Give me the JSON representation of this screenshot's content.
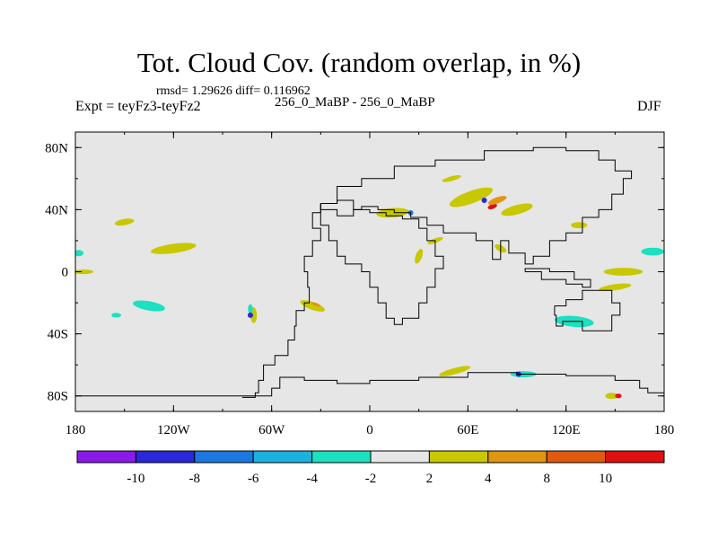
{
  "header": {
    "title": "Tot. Cloud Cov. (random overlap, in %)",
    "stats": "rmsd= 1.29626 diff= 0.116962",
    "left_label": "Expt = teyFz3-teyFz2",
    "center_label": "256_0_MaBP - 256_0_MaBP",
    "season": "DJF"
  },
  "chart_data": {
    "type": "heatmap",
    "title": "Tot. Cloud Cov. (random overlap, in %)",
    "xlabel": "",
    "ylabel": "",
    "xlim": [
      -180,
      180
    ],
    "ylim": [
      -90,
      90
    ],
    "x_ticks": [
      {
        "value": -180,
        "label": "180"
      },
      {
        "value": -120,
        "label": "120W"
      },
      {
        "value": -60,
        "label": "60W"
      },
      {
        "value": 0,
        "label": "0"
      },
      {
        "value": 60,
        "label": "60E"
      },
      {
        "value": 120,
        "label": "120E"
      },
      {
        "value": 180,
        "label": "180"
      }
    ],
    "y_ticks": [
      {
        "value": 80,
        "label": "80N"
      },
      {
        "value": 40,
        "label": "40N"
      },
      {
        "value": 0,
        "label": "0"
      },
      {
        "value": -40,
        "label": "40S"
      },
      {
        "value": -80,
        "label": "80S"
      }
    ],
    "colorbar": {
      "bins": [
        {
          "color": "#8a1be6"
        },
        {
          "color": "#2a28d8"
        },
        {
          "color": "#1c78e0"
        },
        {
          "color": "#1cb2e0"
        },
        {
          "color": "#1ce0c0"
        },
        {
          "color": "#e6e6e6"
        },
        {
          "color": "#c8c800"
        },
        {
          "color": "#e09610"
        },
        {
          "color": "#e05a10"
        },
        {
          "color": "#e01010"
        }
      ],
      "labels": [
        "-10",
        "-8",
        "-6",
        "-4",
        "-2",
        "2",
        "4",
        "8",
        "10"
      ]
    },
    "features": [
      {
        "name": "Central Pacific positive band",
        "lon": -120,
        "lat": 15,
        "rx": 14,
        "ry": 3,
        "rot": -8,
        "color": "#c8c800"
      },
      {
        "name": "North Pacific positive patch",
        "lon": -150,
        "lat": 32,
        "rx": 6,
        "ry": 2,
        "rot": -10,
        "color": "#c8c800"
      },
      {
        "name": "Date-line negative",
        "lon": -178,
        "lat": 12,
        "rx": 3,
        "ry": 2,
        "rot": 0,
        "color": "#1ce0c0"
      },
      {
        "name": "South Pacific negative patch",
        "lon": -135,
        "lat": -22,
        "rx": 10,
        "ry": 3,
        "rot": 10,
        "color": "#1ce0c0"
      },
      {
        "name": "South Pacific negative small",
        "lon": -155,
        "lat": -28,
        "rx": 3,
        "ry": 1.5,
        "rot": 0,
        "color": "#1ce0c0"
      },
      {
        "name": "Equatorial west positive",
        "lon": -175,
        "lat": 0,
        "rx": 6,
        "ry": 1.5,
        "rot": 0,
        "color": "#c8c800"
      },
      {
        "name": "Andes positive",
        "lon": -71,
        "lat": -28,
        "rx": 2,
        "ry": 5,
        "rot": 0,
        "color": "#c8c800"
      },
      {
        "name": "Andes negative",
        "lon": -73,
        "lat": -24,
        "rx": 1.5,
        "ry": 3,
        "rot": 0,
        "color": "#1ce0c0"
      },
      {
        "name": "South Atlantic positive",
        "lon": -35,
        "lat": -22,
        "rx": 8,
        "ry": 2.5,
        "rot": 20,
        "color": "#c8c800"
      },
      {
        "name": "South Atlantic orange",
        "lon": -33,
        "lat": -21,
        "rx": 3,
        "ry": 1,
        "rot": 20,
        "color": "#e09610"
      },
      {
        "name": "Southern Ocean positive",
        "lon": 52,
        "lat": -64,
        "rx": 10,
        "ry": 2,
        "rot": -15,
        "color": "#c8c800"
      },
      {
        "name": "Southern ocean negative",
        "lon": 94,
        "lat": -66,
        "rx": 8,
        "ry": 2,
        "rot": 0,
        "color": "#1ce0c0"
      },
      {
        "name": "Indian Ocean negative",
        "lon": 125,
        "lat": -32,
        "rx": 12,
        "ry": 3.5,
        "rot": 5,
        "color": "#1ce0c0"
      },
      {
        "name": "Indian Ocean positive",
        "lon": 150,
        "lat": -10,
        "rx": 10,
        "ry": 2,
        "rot": -8,
        "color": "#c8c800"
      },
      {
        "name": "Tropical west Pacific positive",
        "lon": 155,
        "lat": 0,
        "rx": 12,
        "ry": 2.5,
        "rot": 0,
        "color": "#c8c800"
      },
      {
        "name": "East Pacific negative",
        "lon": 173,
        "lat": 13,
        "rx": 7,
        "ry": 2.5,
        "rot": 0,
        "color": "#1ce0c0"
      },
      {
        "name": "Mediterranean positive",
        "lon": 14,
        "lat": 38,
        "rx": 10,
        "ry": 3,
        "rot": -5,
        "color": "#c8c800"
      },
      {
        "name": "Asia positive band",
        "lon": 62,
        "lat": 48,
        "rx": 14,
        "ry": 4,
        "rot": -20,
        "color": "#c8c800"
      },
      {
        "name": "Tibet positive",
        "lon": 90,
        "lat": 40,
        "rx": 10,
        "ry": 3,
        "rot": -15,
        "color": "#c8c800"
      },
      {
        "name": "Tibet red",
        "lon": 75,
        "lat": 42,
        "rx": 3,
        "ry": 1.5,
        "rot": -20,
        "color": "#e01010"
      },
      {
        "name": "Tibet orange",
        "lon": 78,
        "lat": 46,
        "rx": 6,
        "ry": 2,
        "rot": -20,
        "color": "#e09610"
      },
      {
        "name": "East Asia positive",
        "lon": 128,
        "lat": 30,
        "rx": 5,
        "ry": 2,
        "rot": 0,
        "color": "#c8c800"
      },
      {
        "name": "Arctic positive",
        "lon": 50,
        "lat": 60,
        "rx": 6,
        "ry": 1.5,
        "rot": -15,
        "color": "#c8c800"
      },
      {
        "name": "Africa positive",
        "lon": 30,
        "lat": 10,
        "rx": 2,
        "ry": 5,
        "rot": 20,
        "color": "#c8c800"
      },
      {
        "name": "Arabian positive",
        "lon": 40,
        "lat": 20,
        "rx": 5,
        "ry": 1.5,
        "rot": -20,
        "color": "#c8c800"
      },
      {
        "name": "Antarctic positive",
        "lon": 148,
        "lat": -80,
        "rx": 4,
        "ry": 2,
        "rot": 0,
        "color": "#c8c800"
      },
      {
        "name": "Antarctic red",
        "lon": 152,
        "lat": -80,
        "rx": 2,
        "ry": 1.5,
        "rot": 0,
        "color": "#e01010"
      },
      {
        "name": "India positive",
        "lon": 80,
        "lat": 15,
        "rx": 4,
        "ry": 2,
        "rot": 30,
        "color": "#c8c800"
      }
    ],
    "point_features": [
      {
        "name": "Andes strong negative",
        "lon": -73,
        "lat": -28,
        "color": "#2a28d8"
      },
      {
        "name": "Tibet strong negative",
        "lon": 70,
        "lat": 46,
        "color": "#2a28d8"
      },
      {
        "name": "Southern Ocean strong negative",
        "lon": 91,
        "lat": -66,
        "color": "#2a28d8"
      },
      {
        "name": "Mediterranean negative",
        "lon": 25,
        "lat": 38,
        "color": "#1c78e0"
      }
    ],
    "coast_paths": [
      {
        "name": "North America west coast",
        "points": [
          [
            -78,
            -81
          ],
          [
            -70,
            -78
          ],
          [
            -68,
            -70
          ],
          [
            -65,
            -60
          ],
          [
            -58,
            -54
          ],
          [
            -50,
            -44
          ],
          [
            -46,
            -35
          ],
          [
            -45,
            -25
          ],
          [
            -40,
            -20
          ],
          [
            -37,
            -10
          ],
          [
            -38,
            0
          ],
          [
            -40,
            10
          ],
          [
            -35,
            20
          ],
          [
            -30,
            28
          ],
          [
            -35,
            38
          ],
          [
            -30,
            44
          ]
        ]
      },
      {
        "name": "Africa outline",
        "points": [
          [
            -30,
            44
          ],
          [
            -20,
            46
          ],
          [
            -10,
            40
          ],
          [
            0,
            38
          ],
          [
            10,
            36
          ],
          [
            20,
            34
          ],
          [
            30,
            28
          ],
          [
            35,
            20
          ],
          [
            40,
            10
          ],
          [
            45,
            2
          ],
          [
            40,
            -10
          ],
          [
            35,
            -20
          ],
          [
            30,
            -30
          ],
          [
            20,
            -34
          ],
          [
            15,
            -30
          ],
          [
            10,
            -20
          ],
          [
            5,
            -10
          ],
          [
            0,
            0
          ],
          [
            -5,
            5
          ],
          [
            -15,
            10
          ],
          [
            -20,
            20
          ],
          [
            -25,
            30
          ],
          [
            -30,
            44
          ]
        ]
      },
      {
        "name": "Eurasia north",
        "points": [
          [
            -30,
            44
          ],
          [
            -20,
            55
          ],
          [
            -5,
            60
          ],
          [
            15,
            68
          ],
          [
            40,
            72
          ],
          [
            70,
            78
          ],
          [
            100,
            80
          ],
          [
            120,
            78
          ],
          [
            140,
            72
          ],
          [
            150,
            65
          ],
          [
            160,
            60
          ],
          [
            155,
            50
          ],
          [
            148,
            40
          ],
          [
            140,
            35
          ],
          [
            130,
            25
          ],
          [
            120,
            20
          ],
          [
            110,
            10
          ],
          [
            100,
            5
          ],
          [
            95,
            12
          ],
          [
            85,
            20
          ],
          [
            80,
            8
          ],
          [
            75,
            20
          ],
          [
            65,
            25
          ],
          [
            55,
            25
          ],
          [
            45,
            30
          ],
          [
            35,
            35
          ],
          [
            25,
            38
          ],
          [
            15,
            40
          ],
          [
            5,
            42
          ],
          [
            -5,
            40
          ],
          [
            -10,
            36
          ],
          [
            -20,
            40
          ],
          [
            -30,
            44
          ]
        ]
      },
      {
        "name": "Southeast Asia islands",
        "points": [
          [
            95,
            0
          ],
          [
            105,
            -5
          ],
          [
            120,
            -8
          ],
          [
            130,
            -10
          ],
          [
            135,
            -5
          ],
          [
            125,
            0
          ],
          [
            110,
            2
          ],
          [
            95,
            0
          ]
        ]
      },
      {
        "name": "Australia",
        "points": [
          [
            113,
            -22
          ],
          [
            120,
            -18
          ],
          [
            130,
            -12
          ],
          [
            140,
            -12
          ],
          [
            148,
            -20
          ],
          [
            153,
            -28
          ],
          [
            148,
            -38
          ],
          [
            140,
            -38
          ],
          [
            130,
            -32
          ],
          [
            118,
            -35
          ],
          [
            114,
            -28
          ],
          [
            113,
            -22
          ]
        ]
      },
      {
        "name": "Antarctica",
        "points": [
          [
            -180,
            -80
          ],
          [
            -120,
            -80
          ],
          [
            -70,
            -80
          ],
          [
            -60,
            -75
          ],
          [
            -55,
            -68
          ],
          [
            -40,
            -70
          ],
          [
            -20,
            -72
          ],
          [
            0,
            -70
          ],
          [
            30,
            -68
          ],
          [
            60,
            -65
          ],
          [
            90,
            -66
          ],
          [
            120,
            -67
          ],
          [
            150,
            -70
          ],
          [
            165,
            -75
          ],
          [
            170,
            -78
          ],
          [
            180,
            -80
          ]
        ]
      }
    ]
  }
}
